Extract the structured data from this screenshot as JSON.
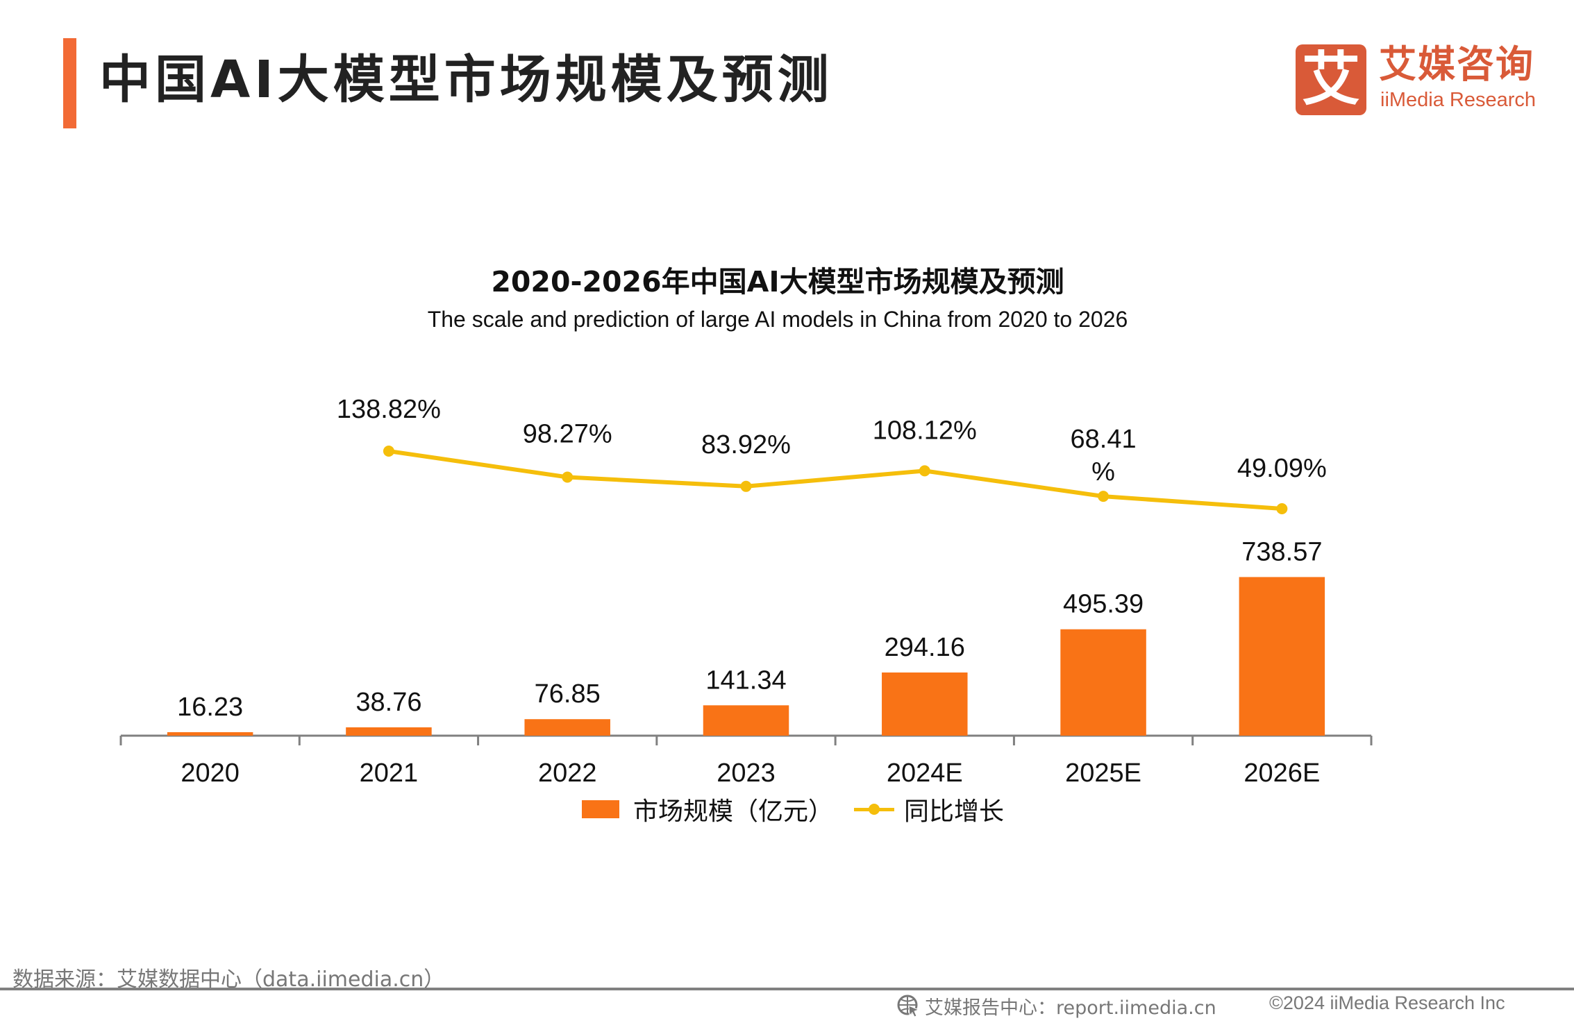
{
  "header": {
    "title": "中国AI大模型市场规模及预测",
    "accent_color": "#f26a35"
  },
  "logo": {
    "mark": "艾",
    "name_cn": "艾媒咨询",
    "name_en": "iiMedia Research",
    "color": "#d95a38"
  },
  "chart_data": {
    "type": "bar",
    "title": "2020-2026年中国AI大模型市场规模及预测",
    "subtitle": "The scale and prediction of large AI models in China from 2020 to 2026",
    "categories": [
      "2020",
      "2021",
      "2022",
      "2023",
      "2024E",
      "2025E",
      "2026E"
    ],
    "series": [
      {
        "name": "市场规模（亿元）",
        "type": "bar",
        "color": "#f97316",
        "values": [
          16.23,
          38.76,
          76.85,
          141.34,
          294.16,
          495.39,
          738.57
        ],
        "labels": [
          "16.23",
          "38.76",
          "76.85",
          "141.34",
          "294.16",
          "495.39",
          "738.57"
        ]
      },
      {
        "name": "同比增长",
        "type": "line",
        "color": "#f5be0b",
        "values": [
          null,
          138.82,
          98.27,
          83.92,
          108.12,
          68.41,
          49.09
        ],
        "labels": [
          "",
          "138.82%",
          "98.27%",
          "83.92%",
          "108.12%",
          "68.41\n%",
          "49.09%"
        ]
      }
    ],
    "xlabel": "",
    "ylabel": "",
    "ylim": [
      0,
      740
    ],
    "y2lim": [
      -250,
      160
    ],
    "grid": false,
    "axes_visible": {
      "y": false,
      "y2": false
    },
    "legend": "bottom-center"
  },
  "legend": {
    "bar_label": "市场规模（亿元）",
    "line_label": "同比增长"
  },
  "footer": {
    "source": "数据来源：艾媒数据中心（data.iimedia.cn）",
    "report_center": "艾媒报告中心：report.iimedia.cn",
    "copyright": "©2024  iiMedia Research  Inc"
  }
}
